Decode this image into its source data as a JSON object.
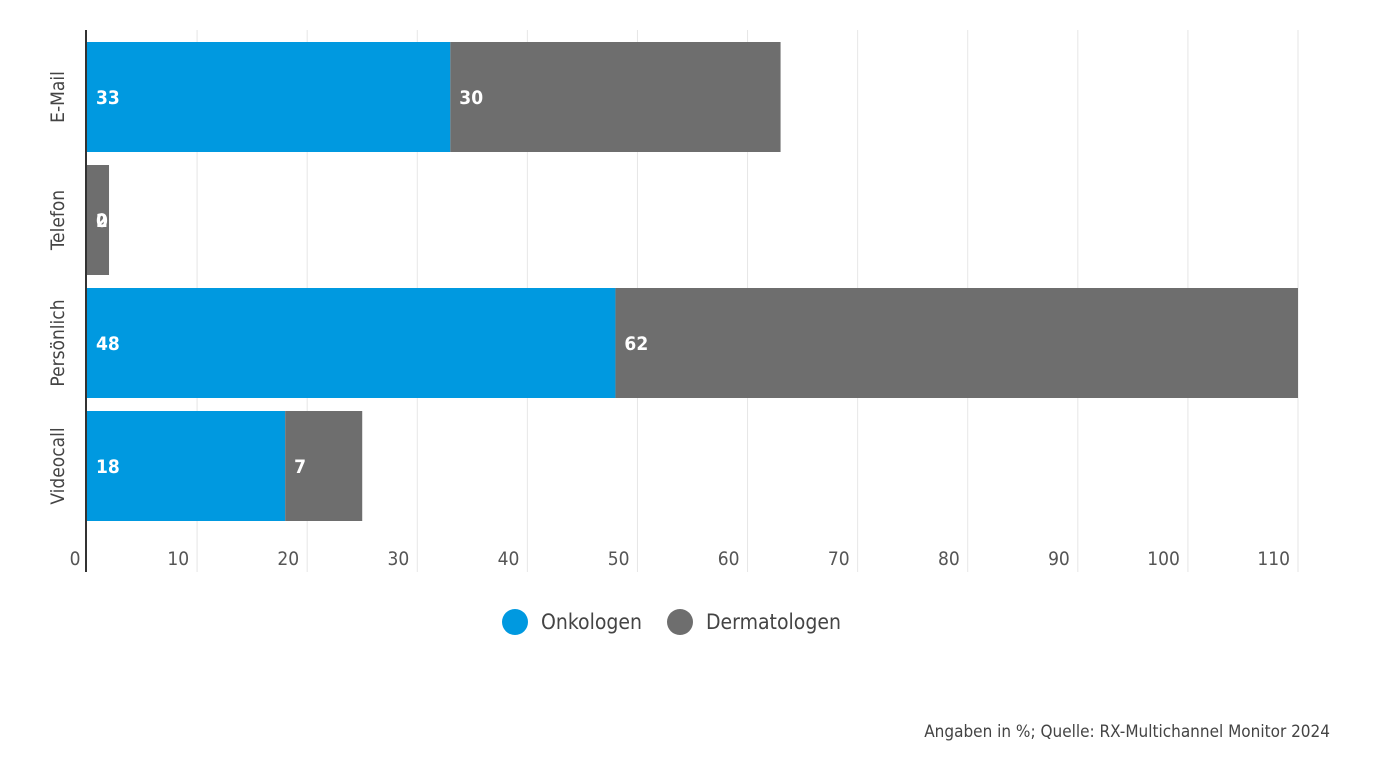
{
  "chart_data": {
    "type": "bar",
    "orientation": "horizontal",
    "stacked": true,
    "categories": [
      "E-Mail",
      "Telefon",
      "Persönlich",
      "Videocall"
    ],
    "series": [
      {
        "name": "Onkologen",
        "color": "#0099e0",
        "values": [
          33,
          0,
          48,
          18
        ]
      },
      {
        "name": "Dermatologen",
        "color": "#6e6e6e",
        "values": [
          30,
          2,
          62,
          7
        ]
      }
    ],
    "data_labels": [
      [
        "33",
        "0",
        "48",
        "18"
      ],
      [
        "30",
        "2",
        "62",
        "7"
      ]
    ],
    "xlim": [
      0,
      110
    ],
    "xticks": [
      0,
      10,
      20,
      30,
      40,
      50,
      60,
      70,
      80,
      90,
      100,
      110
    ],
    "grid": true,
    "legend_position": "bottom-center"
  },
  "legend": {
    "items": [
      {
        "label": "Onkologen",
        "color": "#0099e0"
      },
      {
        "label": "Dermatologen",
        "color": "#6e6e6e"
      }
    ]
  },
  "source_note": "Angaben in %; Quelle: RX-Multichannel Monitor 2024"
}
